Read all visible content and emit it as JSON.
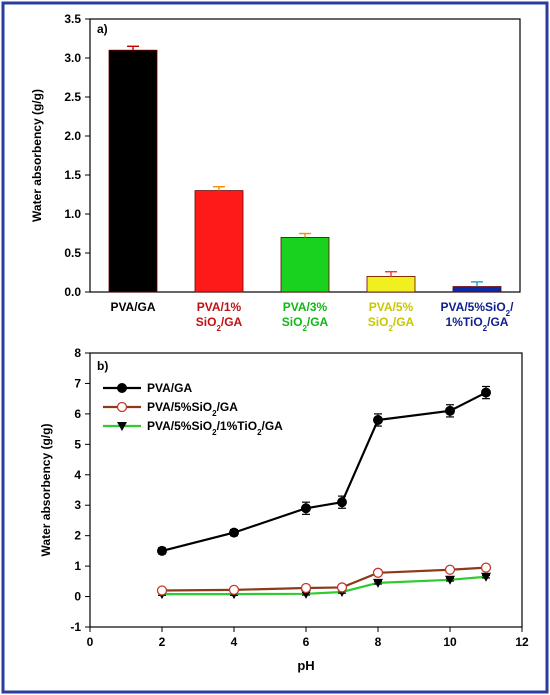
{
  "colors": {
    "frame": "#2a3d9e",
    "axis": "#000000",
    "bar_fills": [
      "#000000",
      "#ff1a1a",
      "#19d21e",
      "#f0f01e",
      "#0a2aa8"
    ],
    "bar_label_colors": [
      "#000000",
      "#c01010",
      "#10b814",
      "#c8c800",
      "#10208c"
    ],
    "bar_error": [
      "#c00000",
      "#ff8c00",
      "#ff8c00",
      "#ff3030",
      "#1ea0d0"
    ],
    "line_series": [
      "#000000",
      "#8b3a1a",
      "#2ecc2e"
    ]
  },
  "chart_data": [
    {
      "type": "bar",
      "panel_label": "a)",
      "ylabel": "Water absorbency (g/g)",
      "ylim": [
        0,
        3.5
      ],
      "yticks": [
        "0.0",
        "0.5",
        "1.0",
        "1.5",
        "2.0",
        "2.5",
        "3.0",
        "3.5"
      ],
      "categories": [
        [
          "PVA/GA"
        ],
        [
          "PVA/1%",
          "SiO2/GA"
        ],
        [
          "PVA/3%",
          "SiO2/GA"
        ],
        [
          "PVA/5%",
          "SiO2/GA"
        ],
        [
          "PVA/5%SiO2/",
          "1%TiO2/GA"
        ]
      ],
      "values": [
        3.1,
        1.3,
        0.7,
        0.2,
        0.07
      ],
      "errors": [
        0.05,
        0.05,
        0.05,
        0.06,
        0.06
      ]
    },
    {
      "type": "line",
      "panel_label": "b)",
      "xlabel": "pH",
      "ylabel": "Water absorbency (g/g)",
      "xlim": [
        0,
        12
      ],
      "ylim": [
        -1,
        8
      ],
      "xticks": [
        "0",
        "2",
        "4",
        "6",
        "8",
        "10",
        "12"
      ],
      "yticks": [
        "-1",
        "0",
        "1",
        "2",
        "3",
        "4",
        "5",
        "6",
        "7",
        "8"
      ],
      "legend_position": "top-left",
      "x": [
        2,
        4,
        6,
        7,
        8,
        10,
        11
      ],
      "series": [
        {
          "name": "PVA/GA",
          "values": [
            1.5,
            2.1,
            2.9,
            3.1,
            5.8,
            6.1,
            6.7
          ],
          "errors": [
            0.1,
            0.1,
            0.2,
            0.2,
            0.2,
            0.2,
            0.2
          ]
        },
        {
          "name": "PVA/5%SiO2/GA",
          "values": [
            0.2,
            0.22,
            0.28,
            0.3,
            0.78,
            0.88,
            0.95
          ],
          "errors": [
            0.05,
            0.05,
            0.05,
            0.05,
            0.05,
            0.05,
            0.05
          ]
        },
        {
          "name": "PVA/5%SiO2/1%TiO2/GA",
          "values": [
            0.08,
            0.08,
            0.09,
            0.15,
            0.45,
            0.55,
            0.65
          ],
          "errors": [
            0.04,
            0.04,
            0.04,
            0.04,
            0.04,
            0.04,
            0.04
          ]
        }
      ]
    }
  ]
}
